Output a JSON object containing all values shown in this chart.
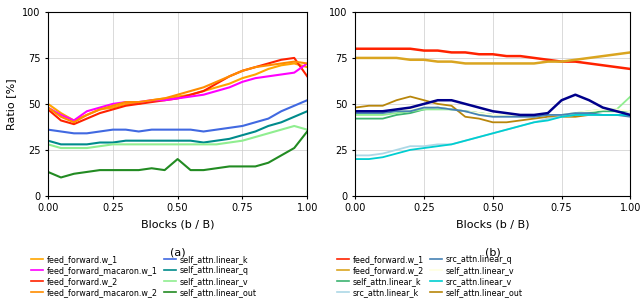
{
  "subplot_a": {
    "xlabel": "Blocks (b / B)",
    "ylabel": "Ratio [%]",
    "xlim": [
      0.0,
      1.0
    ],
    "ylim": [
      0,
      100
    ],
    "yticks": [
      0,
      25,
      50,
      75,
      100
    ],
    "xticks": [
      0.0,
      0.25,
      0.5,
      0.75,
      1.0
    ],
    "series": [
      {
        "label": "feed_forward.w_1",
        "color": "#FFA500",
        "lw": 1.5,
        "x": [
          0.0,
          0.05,
          0.1,
          0.15,
          0.2,
          0.25,
          0.3,
          0.35,
          0.4,
          0.45,
          0.5,
          0.55,
          0.6,
          0.65,
          0.7,
          0.75,
          0.8,
          0.85,
          0.9,
          0.95,
          1.0
        ],
        "y": [
          50,
          45,
          41,
          44,
          47,
          48,
          50,
          50,
          52,
          53,
          54,
          55,
          57,
          59,
          61,
          64,
          66,
          69,
          71,
          72,
          70
        ]
      },
      {
        "label": "feed_forward.w_2",
        "color": "#FF2200",
        "lw": 1.5,
        "x": [
          0.0,
          0.05,
          0.1,
          0.15,
          0.2,
          0.25,
          0.3,
          0.35,
          0.4,
          0.45,
          0.5,
          0.55,
          0.6,
          0.65,
          0.7,
          0.75,
          0.8,
          0.85,
          0.9,
          0.95,
          1.0
        ],
        "y": [
          47,
          41,
          39,
          42,
          45,
          47,
          49,
          50,
          51,
          52,
          53,
          55,
          57,
          61,
          65,
          68,
          70,
          72,
          74,
          75,
          65
        ]
      },
      {
        "label": "feed_forward_macaron.w_1",
        "color": "#FF00FF",
        "lw": 1.5,
        "x": [
          0.0,
          0.05,
          0.1,
          0.15,
          0.2,
          0.25,
          0.3,
          0.35,
          0.4,
          0.45,
          0.5,
          0.55,
          0.6,
          0.65,
          0.7,
          0.75,
          0.8,
          0.85,
          0.9,
          0.95,
          1.0
        ],
        "y": [
          48,
          44,
          41,
          46,
          48,
          50,
          51,
          51,
          52,
          52,
          53,
          54,
          55,
          57,
          59,
          62,
          64,
          65,
          66,
          67,
          72
        ]
      },
      {
        "label": "feed_forward_macaron.w_2",
        "color": "#FF8C00",
        "lw": 1.5,
        "x": [
          0.0,
          0.05,
          0.1,
          0.15,
          0.2,
          0.25,
          0.3,
          0.35,
          0.4,
          0.45,
          0.5,
          0.55,
          0.6,
          0.65,
          0.7,
          0.75,
          0.8,
          0.85,
          0.9,
          0.95,
          1.0
        ],
        "y": [
          48,
          43,
          40,
          44,
          47,
          49,
          51,
          51,
          52,
          53,
          55,
          57,
          59,
          62,
          65,
          68,
          70,
          71,
          72,
          73,
          72
        ]
      },
      {
        "label": "self_attn.linear_k",
        "color": "#4169E1",
        "lw": 1.5,
        "x": [
          0.0,
          0.05,
          0.1,
          0.15,
          0.2,
          0.25,
          0.3,
          0.35,
          0.4,
          0.45,
          0.5,
          0.55,
          0.6,
          0.65,
          0.7,
          0.75,
          0.8,
          0.85,
          0.9,
          0.95,
          1.0
        ],
        "y": [
          36,
          35,
          34,
          34,
          35,
          36,
          36,
          35,
          36,
          36,
          36,
          36,
          35,
          36,
          37,
          38,
          40,
          42,
          46,
          49,
          52
        ]
      },
      {
        "label": "self_attn.linear_q",
        "color": "#008B8B",
        "lw": 1.5,
        "x": [
          0.0,
          0.05,
          0.1,
          0.15,
          0.2,
          0.25,
          0.3,
          0.35,
          0.4,
          0.45,
          0.5,
          0.55,
          0.6,
          0.65,
          0.7,
          0.75,
          0.8,
          0.85,
          0.9,
          0.95,
          1.0
        ],
        "y": [
          30,
          28,
          28,
          28,
          29,
          29,
          30,
          30,
          30,
          30,
          30,
          30,
          29,
          30,
          31,
          33,
          35,
          38,
          40,
          43,
          46
        ]
      },
      {
        "label": "self_attn.linear_v",
        "color": "#90EE90",
        "lw": 1.5,
        "x": [
          0.0,
          0.05,
          0.1,
          0.15,
          0.2,
          0.25,
          0.3,
          0.35,
          0.4,
          0.45,
          0.5,
          0.55,
          0.6,
          0.65,
          0.7,
          0.75,
          0.8,
          0.85,
          0.9,
          0.95,
          1.0
        ],
        "y": [
          28,
          26,
          26,
          26,
          27,
          28,
          28,
          28,
          28,
          28,
          28,
          28,
          28,
          28,
          29,
          30,
          32,
          34,
          36,
          38,
          36
        ]
      },
      {
        "label": "self_attn.linear_out",
        "color": "#228B22",
        "lw": 1.5,
        "x": [
          0.0,
          0.05,
          0.1,
          0.15,
          0.2,
          0.25,
          0.3,
          0.35,
          0.4,
          0.45,
          0.5,
          0.55,
          0.6,
          0.65,
          0.7,
          0.75,
          0.8,
          0.85,
          0.9,
          0.95,
          1.0
        ],
        "y": [
          13,
          10,
          12,
          13,
          14,
          14,
          14,
          14,
          15,
          14,
          20,
          14,
          14,
          15,
          16,
          16,
          16,
          18,
          22,
          26,
          35
        ]
      }
    ]
  },
  "subplot_b": {
    "xlabel": "Blocks (b / B)",
    "ylabel": "",
    "xlim": [
      0.0,
      1.0
    ],
    "ylim": [
      0,
      100
    ],
    "yticks": [
      0,
      25,
      50,
      75,
      100
    ],
    "xticks": [
      0.0,
      0.25,
      0.5,
      0.75,
      1.0
    ],
    "series": [
      {
        "label": "feed_forward.w_1",
        "color": "#FF2200",
        "lw": 1.8,
        "x": [
          0.0,
          0.05,
          0.1,
          0.15,
          0.2,
          0.25,
          0.3,
          0.35,
          0.4,
          0.45,
          0.5,
          0.55,
          0.6,
          0.65,
          0.7,
          0.75,
          0.8,
          0.85,
          0.9,
          0.95,
          1.0
        ],
        "y": [
          80,
          80,
          80,
          80,
          80,
          79,
          79,
          78,
          78,
          77,
          77,
          76,
          76,
          75,
          74,
          73,
          73,
          72,
          71,
          70,
          69
        ]
      },
      {
        "label": "feed_forward.w_2",
        "color": "#DAA520",
        "lw": 1.8,
        "x": [
          0.0,
          0.05,
          0.1,
          0.15,
          0.2,
          0.25,
          0.3,
          0.35,
          0.4,
          0.45,
          0.5,
          0.55,
          0.6,
          0.65,
          0.7,
          0.75,
          0.8,
          0.85,
          0.9,
          0.95,
          1.0
        ],
        "y": [
          75,
          75,
          75,
          75,
          74,
          74,
          73,
          73,
          72,
          72,
          72,
          72,
          72,
          72,
          73,
          73,
          74,
          75,
          76,
          77,
          78
        ]
      },
      {
        "label": "self_attn.linear_k",
        "color": "#3CB371",
        "lw": 1.3,
        "x": [
          0.0,
          0.05,
          0.1,
          0.15,
          0.2,
          0.25,
          0.3,
          0.35,
          0.4,
          0.45,
          0.5,
          0.55,
          0.6,
          0.65,
          0.7,
          0.75,
          0.8,
          0.85,
          0.9,
          0.95,
          1.0
        ],
        "y": [
          42,
          42,
          42,
          44,
          45,
          47,
          48,
          47,
          46,
          45,
          44,
          44,
          44,
          44,
          44,
          44,
          44,
          45,
          46,
          46,
          46
        ]
      },
      {
        "label": "self_attn.linear_q",
        "color": "#90EE90",
        "lw": 1.3,
        "x": [
          0.0,
          0.05,
          0.1,
          0.15,
          0.2,
          0.25,
          0.3,
          0.35,
          0.4,
          0.45,
          0.5,
          0.55,
          0.6,
          0.65,
          0.7,
          0.75,
          0.8,
          0.85,
          0.9,
          0.95,
          1.0
        ],
        "y": [
          44,
          44,
          44,
          45,
          46,
          47,
          47,
          47,
          46,
          45,
          44,
          44,
          44,
          44,
          44,
          44,
          45,
          46,
          47,
          47,
          54
        ]
      },
      {
        "label": "self_attn.linear_v",
        "color": "#FFFFE0",
        "lw": 1.3,
        "x": [
          0.0,
          0.05,
          0.1,
          0.15,
          0.2,
          0.25,
          0.3,
          0.35,
          0.4,
          0.45,
          0.5,
          0.55,
          0.6,
          0.65,
          0.7,
          0.75,
          0.8,
          0.85,
          0.9,
          0.95,
          1.0
        ],
        "y": [
          46,
          46,
          45,
          46,
          47,
          48,
          48,
          47,
          46,
          45,
          44,
          44,
          44,
          44,
          44,
          44,
          45,
          46,
          47,
          47,
          46
        ]
      },
      {
        "label": "self_attn.linear_out",
        "color": "#B8860B",
        "lw": 1.3,
        "x": [
          0.0,
          0.05,
          0.1,
          0.15,
          0.2,
          0.25,
          0.3,
          0.35,
          0.4,
          0.45,
          0.5,
          0.55,
          0.6,
          0.65,
          0.7,
          0.75,
          0.8,
          0.85,
          0.9,
          0.95,
          1.0
        ],
        "y": [
          48,
          49,
          49,
          52,
          54,
          52,
          50,
          49,
          43,
          42,
          40,
          40,
          41,
          42,
          43,
          43,
          43,
          44,
          44,
          44,
          44
        ]
      },
      {
        "label": "src_attn.linear_k",
        "color": "#ADD8E6",
        "lw": 1.3,
        "x": [
          0.0,
          0.05,
          0.1,
          0.15,
          0.2,
          0.25,
          0.3,
          0.35,
          0.4,
          0.45,
          0.5,
          0.55,
          0.6,
          0.65,
          0.7,
          0.75,
          0.8,
          0.85,
          0.9,
          0.95,
          1.0
        ],
        "y": [
          22,
          22,
          23,
          25,
          27,
          27,
          28,
          28,
          30,
          32,
          34,
          36,
          38,
          40,
          42,
          43,
          44,
          44,
          44,
          44,
          44
        ]
      },
      {
        "label": "src_attn.linear_q",
        "color": "#4682B4",
        "lw": 1.3,
        "x": [
          0.0,
          0.05,
          0.1,
          0.15,
          0.2,
          0.25,
          0.3,
          0.35,
          0.4,
          0.45,
          0.5,
          0.55,
          0.6,
          0.65,
          0.7,
          0.75,
          0.8,
          0.85,
          0.9,
          0.95,
          1.0
        ],
        "y": [
          45,
          45,
          45,
          46,
          46,
          48,
          48,
          47,
          46,
          44,
          43,
          43,
          43,
          43,
          44,
          44,
          45,
          45,
          44,
          44,
          43
        ]
      },
      {
        "label": "src_attn.linear_v",
        "color": "#00CED1",
        "lw": 1.3,
        "x": [
          0.0,
          0.05,
          0.1,
          0.15,
          0.2,
          0.25,
          0.3,
          0.35,
          0.4,
          0.45,
          0.5,
          0.55,
          0.6,
          0.65,
          0.7,
          0.75,
          0.8,
          0.85,
          0.9,
          0.95,
          1.0
        ],
        "y": [
          20,
          20,
          21,
          23,
          25,
          26,
          27,
          28,
          30,
          32,
          34,
          36,
          38,
          40,
          41,
          43,
          44,
          44,
          44,
          44,
          44
        ]
      },
      {
        "label": "src_attn.linear_out",
        "color": "#00008B",
        "lw": 1.8,
        "x": [
          0.0,
          0.05,
          0.1,
          0.15,
          0.2,
          0.25,
          0.3,
          0.35,
          0.4,
          0.45,
          0.5,
          0.55,
          0.6,
          0.65,
          0.7,
          0.75,
          0.8,
          0.85,
          0.9,
          0.95,
          1.0
        ],
        "y": [
          46,
          46,
          46,
          47,
          48,
          50,
          52,
          52,
          50,
          48,
          46,
          45,
          44,
          44,
          45,
          52,
          55,
          52,
          48,
          46,
          44
        ]
      }
    ]
  },
  "legend_a_col1": [
    {
      "label": "feed_forward.w_1",
      "color": "#FFA500"
    },
    {
      "label": "feed_forward.w_2",
      "color": "#FF2200"
    },
    {
      "label": "    self_attn.linear_k",
      "color": "#4169E1"
    },
    {
      "label": "    self_attn.linear_v",
      "color": "#90EE90"
    }
  ],
  "legend_a_col2": [
    {
      "label": "feed_forward_macaron.w_1",
      "color": "#FF00FF"
    },
    {
      "label": "feed_forward_macaron.w_2",
      "color": "#FF8C00"
    },
    {
      "label": "    self_attn.linear_q",
      "color": "#008B8B"
    },
    {
      "label": "    self_attn.linear_out",
      "color": "#228B22"
    }
  ],
  "legend_b_col1": [
    {
      "label": "feed_forward.w_1",
      "color": "#FF2200"
    },
    {
      "label": "    self_attn.linear_k",
      "color": "#3CB371"
    },
    {
      "label": "    self_attn.linear_q",
      "color": "#90EE90"
    },
    {
      "label": "    self_attn.linear_v",
      "color": "#FFFFE0"
    },
    {
      "label": "    self_attn.linear_out",
      "color": "#B8860B"
    }
  ],
  "legend_b_col2": [
    {
      "label": "feed_forward.w_2",
      "color": "#DAA520"
    },
    {
      "label": "    src_attn.linear_k",
      "color": "#ADD8E6"
    },
    {
      "label": "    src_attn.linear_q",
      "color": "#4682B4"
    },
    {
      "label": "    src_attn.linear_v",
      "color": "#00CED1"
    },
    {
      "label": "    src_attn.linear_out",
      "color": "#00008B"
    }
  ]
}
